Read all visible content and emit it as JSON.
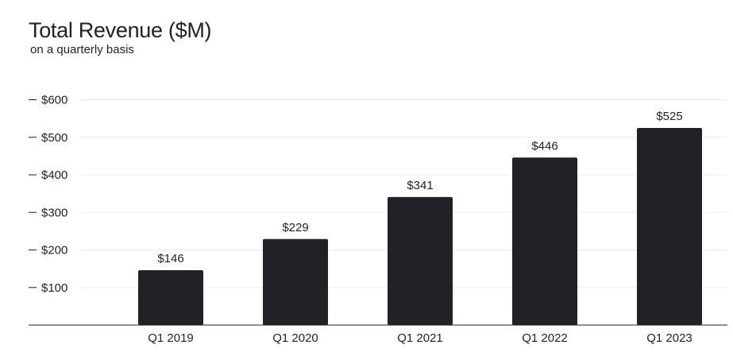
{
  "chart_data": {
    "type": "bar",
    "title": "Total Revenue ($M)",
    "subtitle": "on a quarterly basis",
    "xlabel": "",
    "ylabel": "",
    "categories": [
      "Q1 2019",
      "Q1 2020",
      "Q1 2021",
      "Q1 2022",
      "Q1 2023"
    ],
    "values": [
      146,
      229,
      341,
      446,
      525
    ],
    "data_labels": [
      "$146",
      "$229",
      "$341",
      "$446",
      "$525"
    ],
    "y_ticks": [
      100,
      200,
      300,
      400,
      500,
      600
    ],
    "y_tick_labels": [
      "$100",
      "$200",
      "$300",
      "$400",
      "$500",
      "$600"
    ],
    "ylim": [
      0,
      600
    ],
    "grid": true,
    "legend": "none",
    "bar_color": "#1f2124",
    "grid_color": "#ececec"
  }
}
